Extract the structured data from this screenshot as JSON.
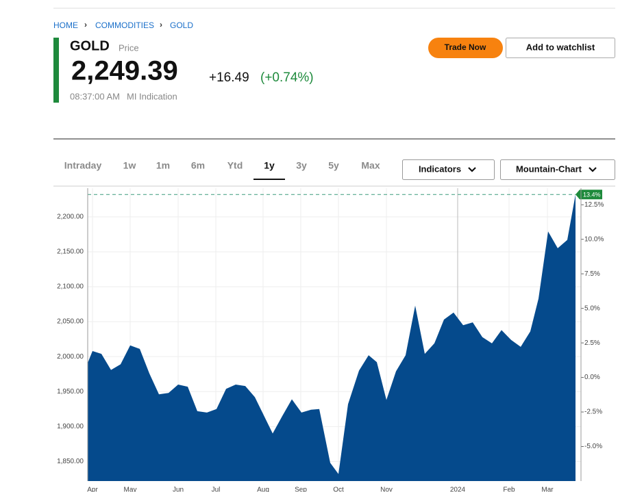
{
  "breadcrumb": [
    "HOME",
    "COMMODITIES",
    "GOLD"
  ],
  "header": {
    "name": "GOLD",
    "name_note": "Price",
    "price": "2,249.39",
    "change": "+16.49",
    "change_pct": "(+0.74%)",
    "time": "08:37:00 AM",
    "source": "MI Indication"
  },
  "buttons": {
    "trade": "Trade Now",
    "watchlist": "Add to watchlist"
  },
  "tabs": [
    "Intraday",
    "1w",
    "1m",
    "6m",
    "Ytd",
    "1y",
    "3y",
    "5y",
    "Max"
  ],
  "active_tab": 5,
  "dropdowns": [
    "Indicators",
    "Mountain-Chart"
  ],
  "chart": {
    "type": "area",
    "color": "#054a8c",
    "badge": "13.4%",
    "x": [
      0,
      7,
      20,
      34,
      48,
      62,
      76,
      90,
      104,
      118,
      132,
      146,
      160,
      174,
      188,
      202,
      216,
      230,
      244,
      258,
      270,
      284,
      298,
      312,
      326,
      338,
      354,
      366,
      380,
      396,
      410,
      422,
      436,
      450,
      464,
      478,
      492,
      506,
      520,
      534,
      548,
      562,
      576,
      590,
      604,
      618,
      632,
      646,
      658,
      672,
      686,
      700,
      712
    ],
    "values": [
      1991,
      2008,
      2004,
      1981,
      1989,
      2016,
      2011,
      1976,
      1946,
      1948,
      1960,
      1957,
      1922,
      1920,
      1925,
      1954,
      1960,
      1958,
      1942,
      1914,
      1890,
      1915,
      1939,
      1920,
      1924,
      1925,
      1848,
      1832,
      1932,
      1980,
      2002,
      1992,
      1938,
      1979,
      2002,
      2073,
      2004,
      2019,
      2053,
      2063,
      2045,
      2049,
      2028,
      2019,
      2038,
      2024,
      2014,
      2036,
      2083,
      2179,
      2155,
      2167,
      2232
    ],
    "xlim": [
      0,
      712
    ],
    "xticks": [
      {
        "value": 7,
        "label": "Apr"
      },
      {
        "value": 62,
        "label": "May"
      },
      {
        "value": 132,
        "label": "Jun"
      },
      {
        "value": 187,
        "label": "Jul"
      },
      {
        "value": 256,
        "label": "Aug"
      },
      {
        "value": 311,
        "label": "Sep"
      },
      {
        "value": 366,
        "label": "Oct"
      },
      {
        "value": 436,
        "label": "Nov"
      },
      {
        "value": 540,
        "label": "2024"
      },
      {
        "value": 615,
        "label": "Feb"
      },
      {
        "value": 671,
        "label": "Mar"
      }
    ],
    "ylim": [
      1822,
      2241
    ],
    "yticks": [
      {
        "value": 1850,
        "label": "1,850.00"
      },
      {
        "value": 1900,
        "label": "1,900.00"
      },
      {
        "value": 1950,
        "label": "1,950.00"
      },
      {
        "value": 2000,
        "label": "2,000.00"
      },
      {
        "value": 2050,
        "label": "2,050.00"
      },
      {
        "value": 2100,
        "label": "2,100.00"
      },
      {
        "value": 2150,
        "label": "2,150.00"
      },
      {
        "value": 2200,
        "label": "2,200.00"
      }
    ],
    "y2lim": [
      -7.5,
      13.7
    ],
    "y2ticks": [
      {
        "value": -5,
        "label": "-5.0%"
      },
      {
        "value": -2.5,
        "label": "-2.5%"
      },
      {
        "value": 0,
        "label": "0.0%"
      },
      {
        "value": 2.5,
        "label": "2.5%"
      },
      {
        "value": 5,
        "label": "5.0%"
      },
      {
        "value": 7.5,
        "label": "7.5%"
      },
      {
        "value": 10,
        "label": "10.0%"
      },
      {
        "value": 12.5,
        "label": "12.5%"
      }
    ],
    "grid": true
  }
}
